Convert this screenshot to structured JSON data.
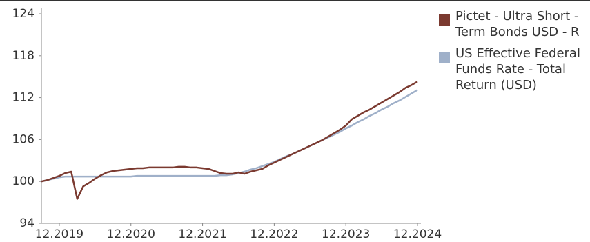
{
  "chart_data": {
    "type": "line",
    "x": [
      "09.2019",
      "10.2019",
      "11.2019",
      "12.2019",
      "01.2020",
      "02.2020",
      "03.2020",
      "04.2020",
      "05.2020",
      "06.2020",
      "07.2020",
      "08.2020",
      "09.2020",
      "10.2020",
      "11.2020",
      "12.2020",
      "01.2021",
      "02.2021",
      "03.2021",
      "04.2021",
      "05.2021",
      "06.2021",
      "07.2021",
      "08.2021",
      "09.2021",
      "10.2021",
      "11.2021",
      "12.2021",
      "01.2022",
      "02.2022",
      "03.2022",
      "04.2022",
      "05.2022",
      "06.2022",
      "07.2022",
      "08.2022",
      "09.2022",
      "10.2022",
      "11.2022",
      "12.2022",
      "01.2023",
      "02.2023",
      "03.2023",
      "04.2023",
      "05.2023",
      "06.2023",
      "07.2023",
      "08.2023",
      "09.2023",
      "10.2023",
      "11.2023",
      "12.2023",
      "01.2024",
      "02.2024",
      "03.2024",
      "04.2024",
      "05.2024",
      "06.2024",
      "07.2024",
      "08.2024",
      "09.2024",
      "10.2024",
      "11.2024",
      "12.2024"
    ],
    "series": [
      {
        "name": "Pictet - Ultra Short -Term Bonds USD - R",
        "color": "#7b3a30",
        "values": [
          100,
          100.2,
          100.5,
          100.8,
          101.2,
          101.4,
          97.5,
          99.3,
          99.8,
          100.4,
          100.9,
          101.3,
          101.5,
          101.6,
          101.7,
          101.8,
          101.9,
          101.9,
          102,
          102,
          102,
          102,
          102,
          102.1,
          102.1,
          102,
          102,
          101.9,
          101.8,
          101.5,
          101.2,
          101.1,
          101.1,
          101.3,
          101.1,
          101.4,
          101.6,
          101.8,
          102.3,
          102.7,
          103.1,
          103.5,
          103.9,
          104.3,
          104.7,
          105.1,
          105.5,
          105.9,
          106.4,
          106.9,
          107.4,
          108.0,
          108.9,
          109.4,
          109.9,
          110.3,
          110.8,
          111.3,
          111.8,
          112.3,
          112.8,
          113.4,
          113.8,
          114.3
        ]
      },
      {
        "name": "US Effective Federal Funds Rate - Total Return (USD)",
        "color": "#9fb0c9",
        "values": [
          100,
          100.2,
          100.4,
          100.6,
          100.7,
          100.7,
          100.7,
          100.7,
          100.7,
          100.7,
          100.7,
          100.7,
          100.7,
          100.7,
          100.7,
          100.7,
          100.8,
          100.8,
          100.8,
          100.8,
          100.8,
          100.8,
          100.8,
          100.8,
          100.8,
          100.8,
          100.8,
          100.8,
          100.8,
          100.8,
          100.9,
          100.9,
          101,
          101.2,
          101.4,
          101.7,
          101.9,
          102.2,
          102.5,
          102.8,
          103.2,
          103.6,
          103.9,
          104.3,
          104.7,
          105.1,
          105.5,
          105.9,
          106.3,
          106.7,
          107.1,
          107.6,
          108.0,
          108.5,
          108.9,
          109.4,
          109.8,
          110.3,
          110.7,
          111.2,
          111.6,
          112.1,
          112.6,
          113.1
        ]
      }
    ],
    "xlim": [
      "09.2019",
      "12.2024"
    ],
    "xticks": [
      "12.2019",
      "12.2020",
      "12.2021",
      "12.2022",
      "12.2023",
      "12.2024"
    ],
    "ylim": [
      94,
      124
    ],
    "yticks": [
      94,
      100,
      106,
      112,
      118,
      124
    ],
    "grid": false
  }
}
